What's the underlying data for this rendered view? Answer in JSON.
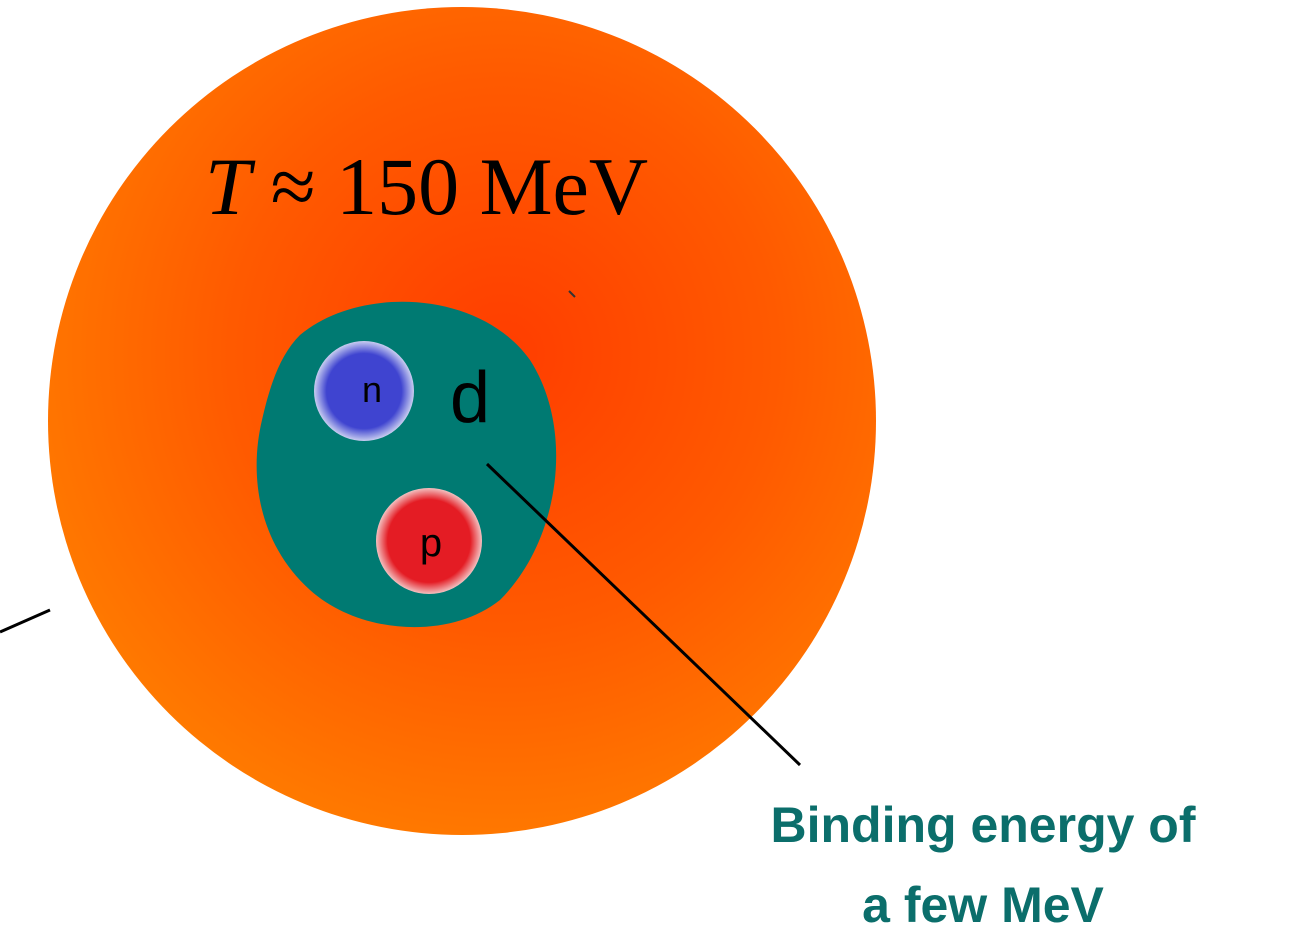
{
  "fireball": {
    "symbol": "T",
    "value": "≈ 150 MeV"
  },
  "deuteron": {
    "label": "d",
    "neutron": "n",
    "proton": "p"
  },
  "binding": {
    "lines": [
      "Binding energy of",
      "a few MeV"
    ]
  }
}
